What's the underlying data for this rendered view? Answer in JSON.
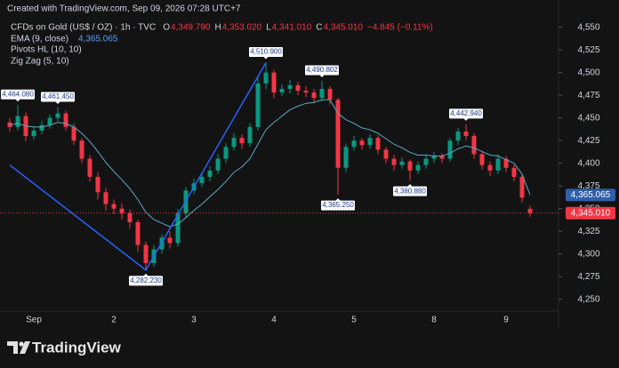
{
  "chart_data": {
    "type": "candlestick",
    "watermark": "Created with TradingView.com, Sep 09, 2026 07:28 UTC+7",
    "title": "CFDs on Gold (US$ / OZ) · 1h · TVC",
    "ohlc": [
      {
        "name": "O",
        "value": 4349.79,
        "label": "4,349.790"
      },
      {
        "name": "H",
        "value": 4353.02,
        "label": "4,353.020"
      },
      {
        "name": "L",
        "value": 4341.01,
        "label": "4,341.010"
      },
      {
        "name": "C",
        "value": 4345.01,
        "label": "4,345.010"
      }
    ],
    "change": {
      "value": -4.845,
      "label": "−4.845 (−0.11%)"
    },
    "indicators": [
      "Pivots HL (10, 10)",
      "Zig Zag (5, 10)"
    ],
    "brand": "TradingView",
    "up_color": "#089981",
    "down_color": "#f23645",
    "categories": [
      null,
      null,
      null,
      "Sep",
      null,
      null,
      null,
      null,
      null,
      null,
      null,
      null,
      null,
      "2",
      null,
      null,
      null,
      null,
      null,
      null,
      null,
      null,
      null,
      "3",
      null,
      null,
      null,
      null,
      null,
      null,
      null,
      null,
      null,
      "4",
      null,
      null,
      null,
      null,
      null,
      null,
      null,
      null,
      null,
      "5",
      null,
      null,
      null,
      null,
      null,
      null,
      null,
      null,
      null,
      "8",
      null,
      null,
      null,
      null,
      null,
      null,
      null,
      null,
      "9",
      null,
      null,
      null
    ],
    "open": [
      4445,
      4440,
      4452,
      4430,
      4436,
      4442,
      4450,
      4455,
      4440,
      4425,
      4405,
      4385,
      4368,
      4355,
      4350,
      4345,
      4335,
      4310,
      4290,
      4305,
      4318,
      4312,
      4345,
      4370,
      4378,
      4385,
      4392,
      4405,
      4418,
      4428,
      4422,
      4440,
      4488,
      4500,
      4478,
      4482,
      4486,
      4480,
      4478,
      4472,
      4482,
      4470,
      4395,
      4418,
      4425,
      4420,
      4428,
      4415,
      4405,
      4398,
      4402,
      4392,
      4398,
      4405,
      4408,
      4405,
      4425,
      4435,
      4430,
      4410,
      4398,
      4392,
      4405,
      4395,
      4385,
      4349.79
    ],
    "high": [
      4450,
      4464.08,
      4456,
      4441,
      4447,
      4454,
      4461.45,
      4458,
      4444,
      4428,
      4409,
      4390,
      4373,
      4360,
      4356,
      4349,
      4338,
      4314,
      4310,
      4322,
      4325,
      4350,
      4374,
      4383,
      4389,
      4397,
      4410,
      4422,
      4433,
      4432,
      4444,
      4494,
      4510.9,
      4503,
      4487,
      4492,
      4490,
      4485,
      4482,
      4490.8,
      4485,
      4472,
      4422,
      4430,
      4428,
      4432,
      4431,
      4418,
      4409,
      4406,
      4404,
      4402,
      4409,
      4412,
      4411,
      4428,
      4439,
      4442.94,
      4433,
      4413,
      4402,
      4410,
      4408,
      4398,
      4388,
      4353.02
    ],
    "low": [
      4435,
      4436,
      4424,
      4426,
      4432,
      4438,
      4446,
      4436,
      4420,
      4400,
      4380,
      4360,
      4348,
      4344,
      4338,
      4328,
      4302,
      4282.23,
      4286,
      4300,
      4306,
      4308,
      4340,
      4366,
      4374,
      4380,
      4388,
      4400,
      4414,
      4416,
      4418,
      4436,
      4482,
      4472,
      4474,
      4477,
      4475,
      4473,
      4466,
      4468,
      4465,
      4365.25,
      4390,
      4414,
      4415,
      4416,
      4410,
      4400,
      4392,
      4394,
      4380.88,
      4388,
      4394,
      4400,
      4400,
      4402,
      4420,
      4425,
      4405,
      4393,
      4386,
      4388,
      4390,
      4380,
      4357,
      4341.01
    ],
    "close": [
      4440,
      4452,
      4430,
      4436,
      4442,
      4450,
      4455,
      4440,
      4425,
      4405,
      4385,
      4368,
      4355,
      4350,
      4345,
      4335,
      4310,
      4290,
      4305,
      4318,
      4312,
      4345,
      4370,
      4378,
      4385,
      4392,
      4405,
      4418,
      4428,
      4422,
      4440,
      4488,
      4500,
      4478,
      4482,
      4486,
      4480,
      4478,
      4472,
      4482,
      4470,
      4395,
      4418,
      4425,
      4420,
      4428,
      4415,
      4405,
      4398,
      4402,
      4392,
      4398,
      4405,
      4408,
      4405,
      4425,
      4435,
      4430,
      4410,
      4398,
      4392,
      4405,
      4395,
      4385,
      4362,
      4345.01
    ],
    "ema": {
      "name": "EMA (9, close)",
      "color": "#5aa9c9",
      "last": {
        "value": 4365.065,
        "label": "4,365.065"
      },
      "values": [
        4442,
        4444,
        4441,
        4440,
        4440,
        4442,
        4445,
        4444,
        4440,
        4433,
        4424,
        4413,
        4401,
        4391,
        4382,
        4372,
        4360,
        4346,
        4338,
        4334,
        4330,
        4333,
        4340,
        4348,
        4355,
        4363,
        4371,
        4380,
        4390,
        4396,
        4405,
        4421,
        4437,
        4445,
        4452,
        4459,
        4463,
        4466,
        4467,
        4470,
        4470,
        4455,
        4448,
        4444,
        4439,
        4437,
        4433,
        4427,
        4421,
        4417,
        4412,
        4409,
        4409,
        4408,
        4408,
        4411,
        4416,
        4419,
        4417,
        4413,
        4409,
        4408,
        4404,
        4400,
        4388,
        4365.065
      ]
    },
    "zigzag": {
      "color": "#2962ff",
      "x": [
        0,
        17,
        32
      ],
      "values": [
        4398,
        4282.23,
        4510.9
      ]
    },
    "pivots": [
      {
        "x": 1,
        "value": 4464.08,
        "label": "4,464.080",
        "side": "high"
      },
      {
        "x": 6,
        "value": 4461.45,
        "label": "4,461.450",
        "side": "high"
      },
      {
        "x": 17,
        "value": 4282.23,
        "label": "4,282.230",
        "side": "low"
      },
      {
        "x": 32,
        "value": 4510.9,
        "label": "4,510.900",
        "side": "high"
      },
      {
        "x": 39,
        "value": 4490.802,
        "label": "4,490.802",
        "side": "high"
      },
      {
        "x": 41,
        "value": 4365.25,
        "label": "4,365.250",
        "side": "low"
      },
      {
        "x": 50,
        "value": 4380.88,
        "label": "4,380.880",
        "side": "low"
      },
      {
        "x": 57,
        "value": 4442.94,
        "label": "4,442.940",
        "side": "high"
      }
    ],
    "last_price": {
      "value": 4345.01,
      "label": "4,345.010"
    },
    "ylim": [
      4237,
      4580
    ],
    "yticks": [
      {
        "value": 4250,
        "label": "4,250"
      },
      {
        "value": 4275,
        "label": "4,275"
      },
      {
        "value": 4300,
        "label": "4,300"
      },
      {
        "value": 4325,
        "label": "4,325"
      },
      {
        "value": 4350,
        "label": "4,350"
      },
      {
        "value": 4375,
        "label": "4,375"
      },
      {
        "value": 4400,
        "label": "4,400"
      },
      {
        "value": 4425,
        "label": "4,425"
      },
      {
        "value": 4450,
        "label": "4,450"
      },
      {
        "value": 4475,
        "label": "4,475"
      },
      {
        "value": 4500,
        "label": "4,500"
      },
      {
        "value": 4525,
        "label": "4,525"
      },
      {
        "value": 4550,
        "label": "4,550"
      }
    ]
  }
}
